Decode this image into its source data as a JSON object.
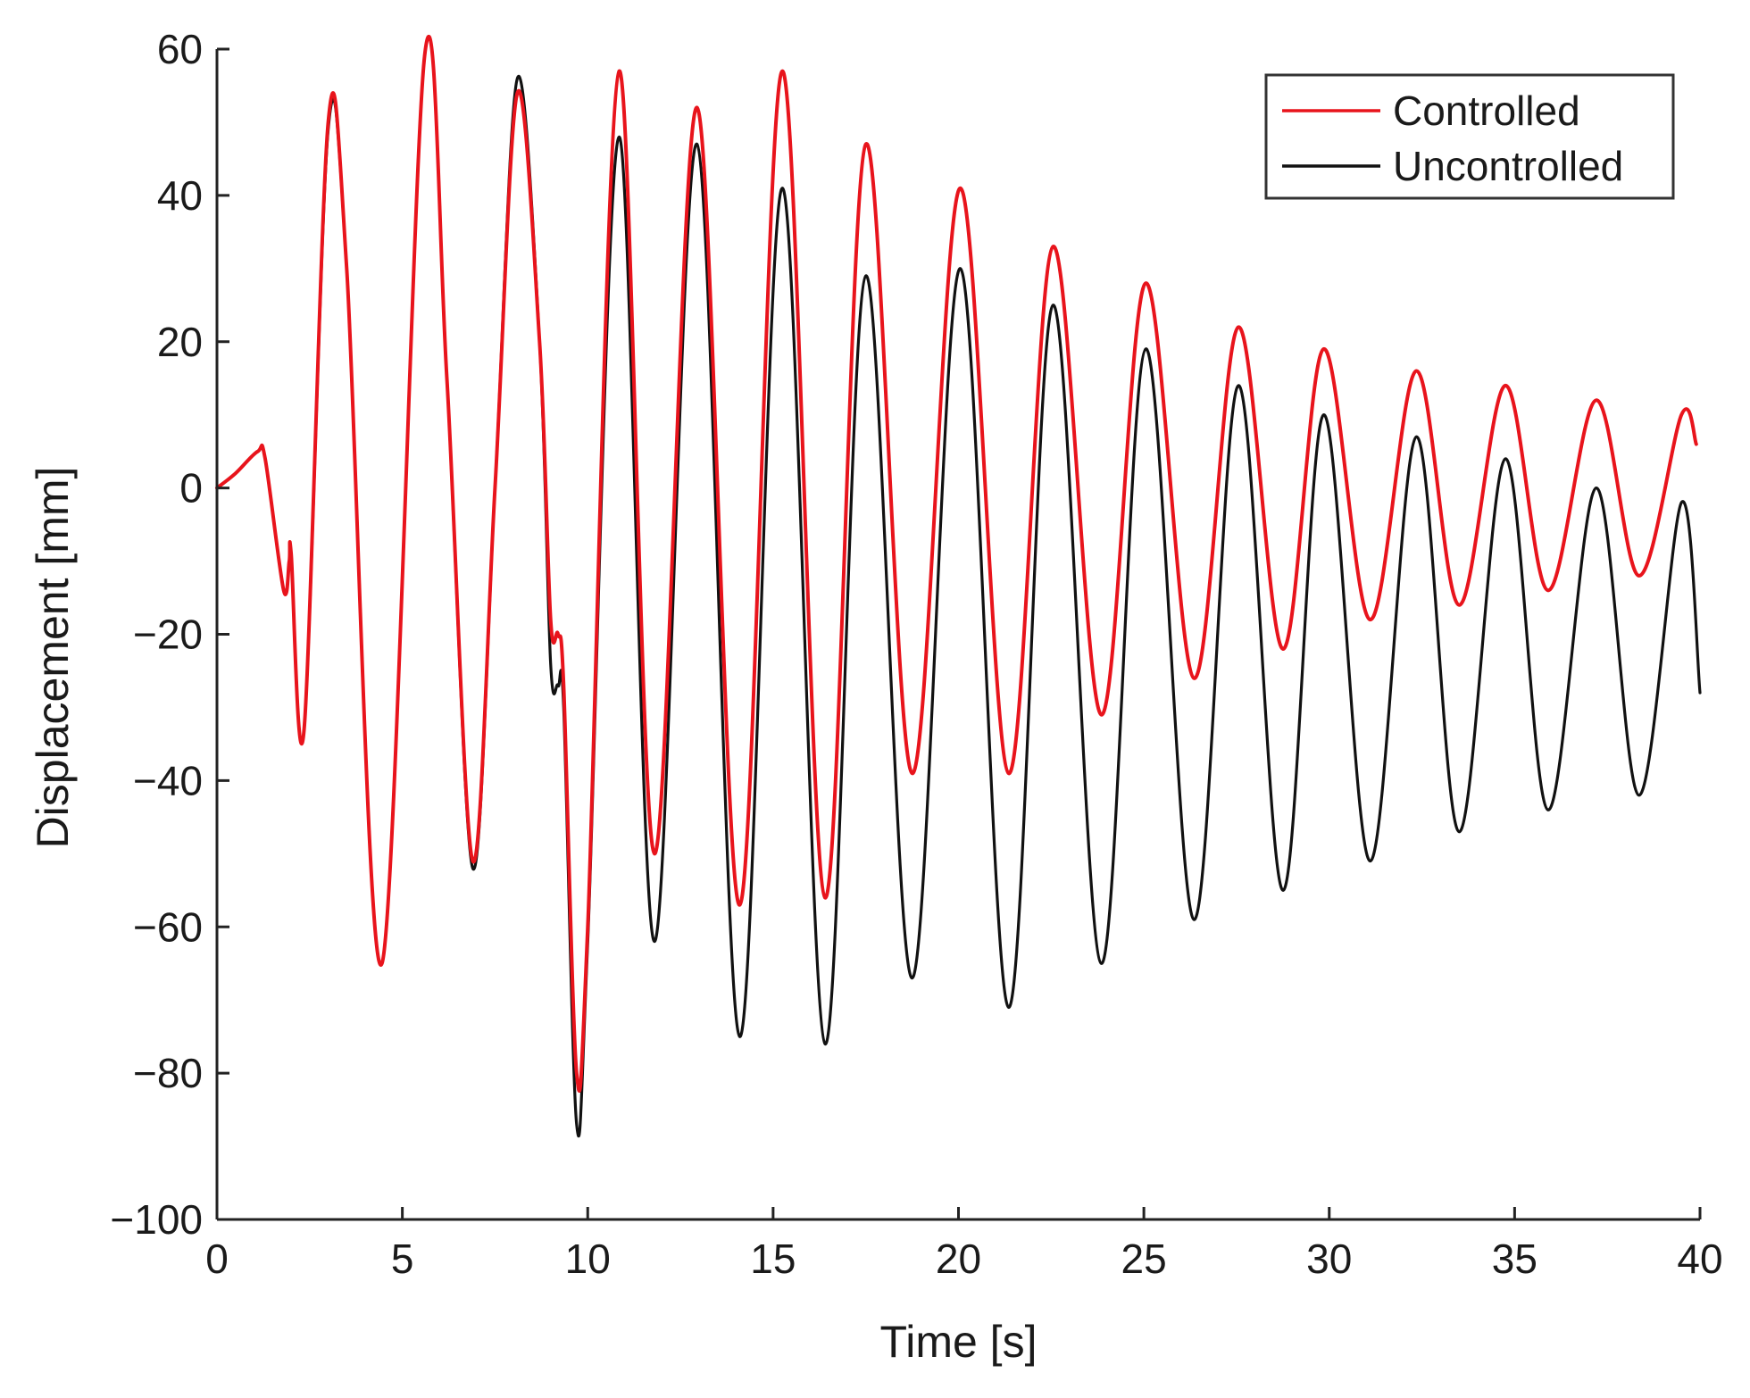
{
  "chart_data": {
    "type": "line",
    "title": "",
    "xlabel": "Time [s]",
    "ylabel": "Displacement [mm]",
    "xlim": [
      0,
      40
    ],
    "ylim": [
      -100,
      60
    ],
    "xticks": [
      0,
      5,
      10,
      15,
      20,
      25,
      30,
      35,
      40
    ],
    "yticks": [
      -100,
      -80,
      -60,
      -40,
      -20,
      0,
      20,
      40,
      60
    ],
    "xtick_labels": [
      "0",
      "5",
      "10",
      "15",
      "20",
      "25",
      "30",
      "35",
      "40"
    ],
    "ytick_labels": [
      "−100",
      "−80",
      "−60",
      "−40",
      "−20",
      "0",
      "20",
      "40",
      "60"
    ],
    "grid": false,
    "legend_position": "top-right",
    "series": [
      {
        "name": "Controlled",
        "color": "#e8141c",
        "points": [
          [
            0,
            0
          ],
          [
            0.5,
            2
          ],
          [
            1.1,
            5
          ],
          [
            1.3,
            4
          ],
          [
            1.8,
            -14
          ],
          [
            1.95,
            -10
          ],
          [
            2.0,
            -9
          ],
          [
            2.35,
            -33
          ],
          [
            3.0,
            50
          ],
          [
            3.5,
            30
          ],
          [
            4.45,
            -65
          ],
          [
            5.6,
            59
          ],
          [
            6.2,
            15
          ],
          [
            6.9,
            -51
          ],
          [
            7.5,
            0
          ],
          [
            8.1,
            54
          ],
          [
            8.7,
            20
          ],
          [
            9.0,
            -18
          ],
          [
            9.2,
            -20
          ],
          [
            9.35,
            -27
          ],
          [
            9.7,
            -80
          ],
          [
            10.0,
            -60
          ],
          [
            10.85,
            57
          ],
          [
            11.8,
            -50
          ],
          [
            12.95,
            52
          ],
          [
            14.1,
            -57
          ],
          [
            15.25,
            57
          ],
          [
            16.4,
            -56
          ],
          [
            17.5,
            47
          ],
          [
            18.75,
            -39
          ],
          [
            20.05,
            41
          ],
          [
            21.35,
            -39
          ],
          [
            22.55,
            33
          ],
          [
            23.85,
            -31
          ],
          [
            25.05,
            28
          ],
          [
            26.35,
            -26
          ],
          [
            27.55,
            22
          ],
          [
            28.75,
            -22
          ],
          [
            29.85,
            19
          ],
          [
            31.1,
            -18
          ],
          [
            32.35,
            16
          ],
          [
            33.5,
            -16
          ],
          [
            34.75,
            14
          ],
          [
            35.9,
            -14
          ],
          [
            37.2,
            12
          ],
          [
            38.35,
            -12
          ],
          [
            39.5,
            10
          ],
          [
            39.9,
            6
          ]
        ]
      },
      {
        "name": "Uncontrolled",
        "color": "#111111",
        "points": [
          [
            0,
            0
          ],
          [
            0.5,
            2
          ],
          [
            1.1,
            5
          ],
          [
            1.3,
            4
          ],
          [
            1.8,
            -14
          ],
          [
            1.95,
            -10
          ],
          [
            2.0,
            -9
          ],
          [
            2.35,
            -33
          ],
          [
            3.0,
            49
          ],
          [
            3.5,
            30
          ],
          [
            4.45,
            -65
          ],
          [
            5.6,
            59
          ],
          [
            6.2,
            15
          ],
          [
            6.9,
            -52
          ],
          [
            7.5,
            0
          ],
          [
            8.1,
            56
          ],
          [
            8.7,
            20
          ],
          [
            9.0,
            -24
          ],
          [
            9.2,
            -27
          ],
          [
            9.35,
            -30
          ],
          [
            9.7,
            -87
          ],
          [
            10.0,
            -62
          ],
          [
            10.85,
            48
          ],
          [
            11.8,
            -62
          ],
          [
            12.95,
            47
          ],
          [
            14.1,
            -75
          ],
          [
            15.25,
            41
          ],
          [
            16.4,
            -76
          ],
          [
            17.5,
            29
          ],
          [
            18.75,
            -67
          ],
          [
            20.05,
            30
          ],
          [
            21.35,
            -71
          ],
          [
            22.55,
            25
          ],
          [
            23.85,
            -65
          ],
          [
            25.05,
            19
          ],
          [
            26.35,
            -59
          ],
          [
            27.55,
            14
          ],
          [
            28.75,
            -55
          ],
          [
            29.85,
            10
          ],
          [
            31.1,
            -51
          ],
          [
            32.35,
            7
          ],
          [
            33.5,
            -47
          ],
          [
            34.75,
            4
          ],
          [
            35.9,
            -44
          ],
          [
            37.2,
            0
          ],
          [
            38.35,
            -42
          ],
          [
            39.5,
            -2
          ],
          [
            40.0,
            -28
          ]
        ]
      }
    ]
  }
}
